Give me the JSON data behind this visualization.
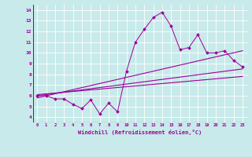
{
  "xlabel": "Windchill (Refroidissement éolien,°C)",
  "ylabel": "",
  "xlim": [
    -0.5,
    23.5
  ],
  "ylim": [
    3.5,
    14.5
  ],
  "xticks": [
    0,
    1,
    2,
    3,
    4,
    5,
    6,
    7,
    8,
    9,
    10,
    11,
    12,
    13,
    14,
    15,
    16,
    17,
    18,
    19,
    20,
    21,
    22,
    23
  ],
  "yticks": [
    4,
    5,
    6,
    7,
    8,
    9,
    10,
    11,
    12,
    13,
    14
  ],
  "bg_color": "#c8eaea",
  "line_color": "#9b009b",
  "series1_x": [
    0,
    1,
    2,
    3,
    4,
    5,
    6,
    7,
    8,
    9,
    10,
    11,
    12,
    13,
    14,
    15,
    16,
    17,
    18,
    19,
    20,
    21,
    22,
    23
  ],
  "series1_y": [
    6.0,
    6.0,
    5.7,
    5.7,
    5.2,
    4.8,
    5.6,
    4.3,
    5.3,
    4.5,
    8.3,
    11.0,
    12.2,
    13.3,
    13.8,
    12.5,
    10.3,
    10.5,
    11.7,
    10.0,
    10.0,
    10.2,
    9.3,
    8.7
  ],
  "series2_x": [
    0,
    23
  ],
  "series2_y": [
    6.0,
    8.5
  ],
  "series3_x": [
    0,
    23
  ],
  "series3_y": [
    5.8,
    10.2
  ],
  "series4_x": [
    0,
    23
  ],
  "series4_y": [
    6.1,
    7.8
  ]
}
